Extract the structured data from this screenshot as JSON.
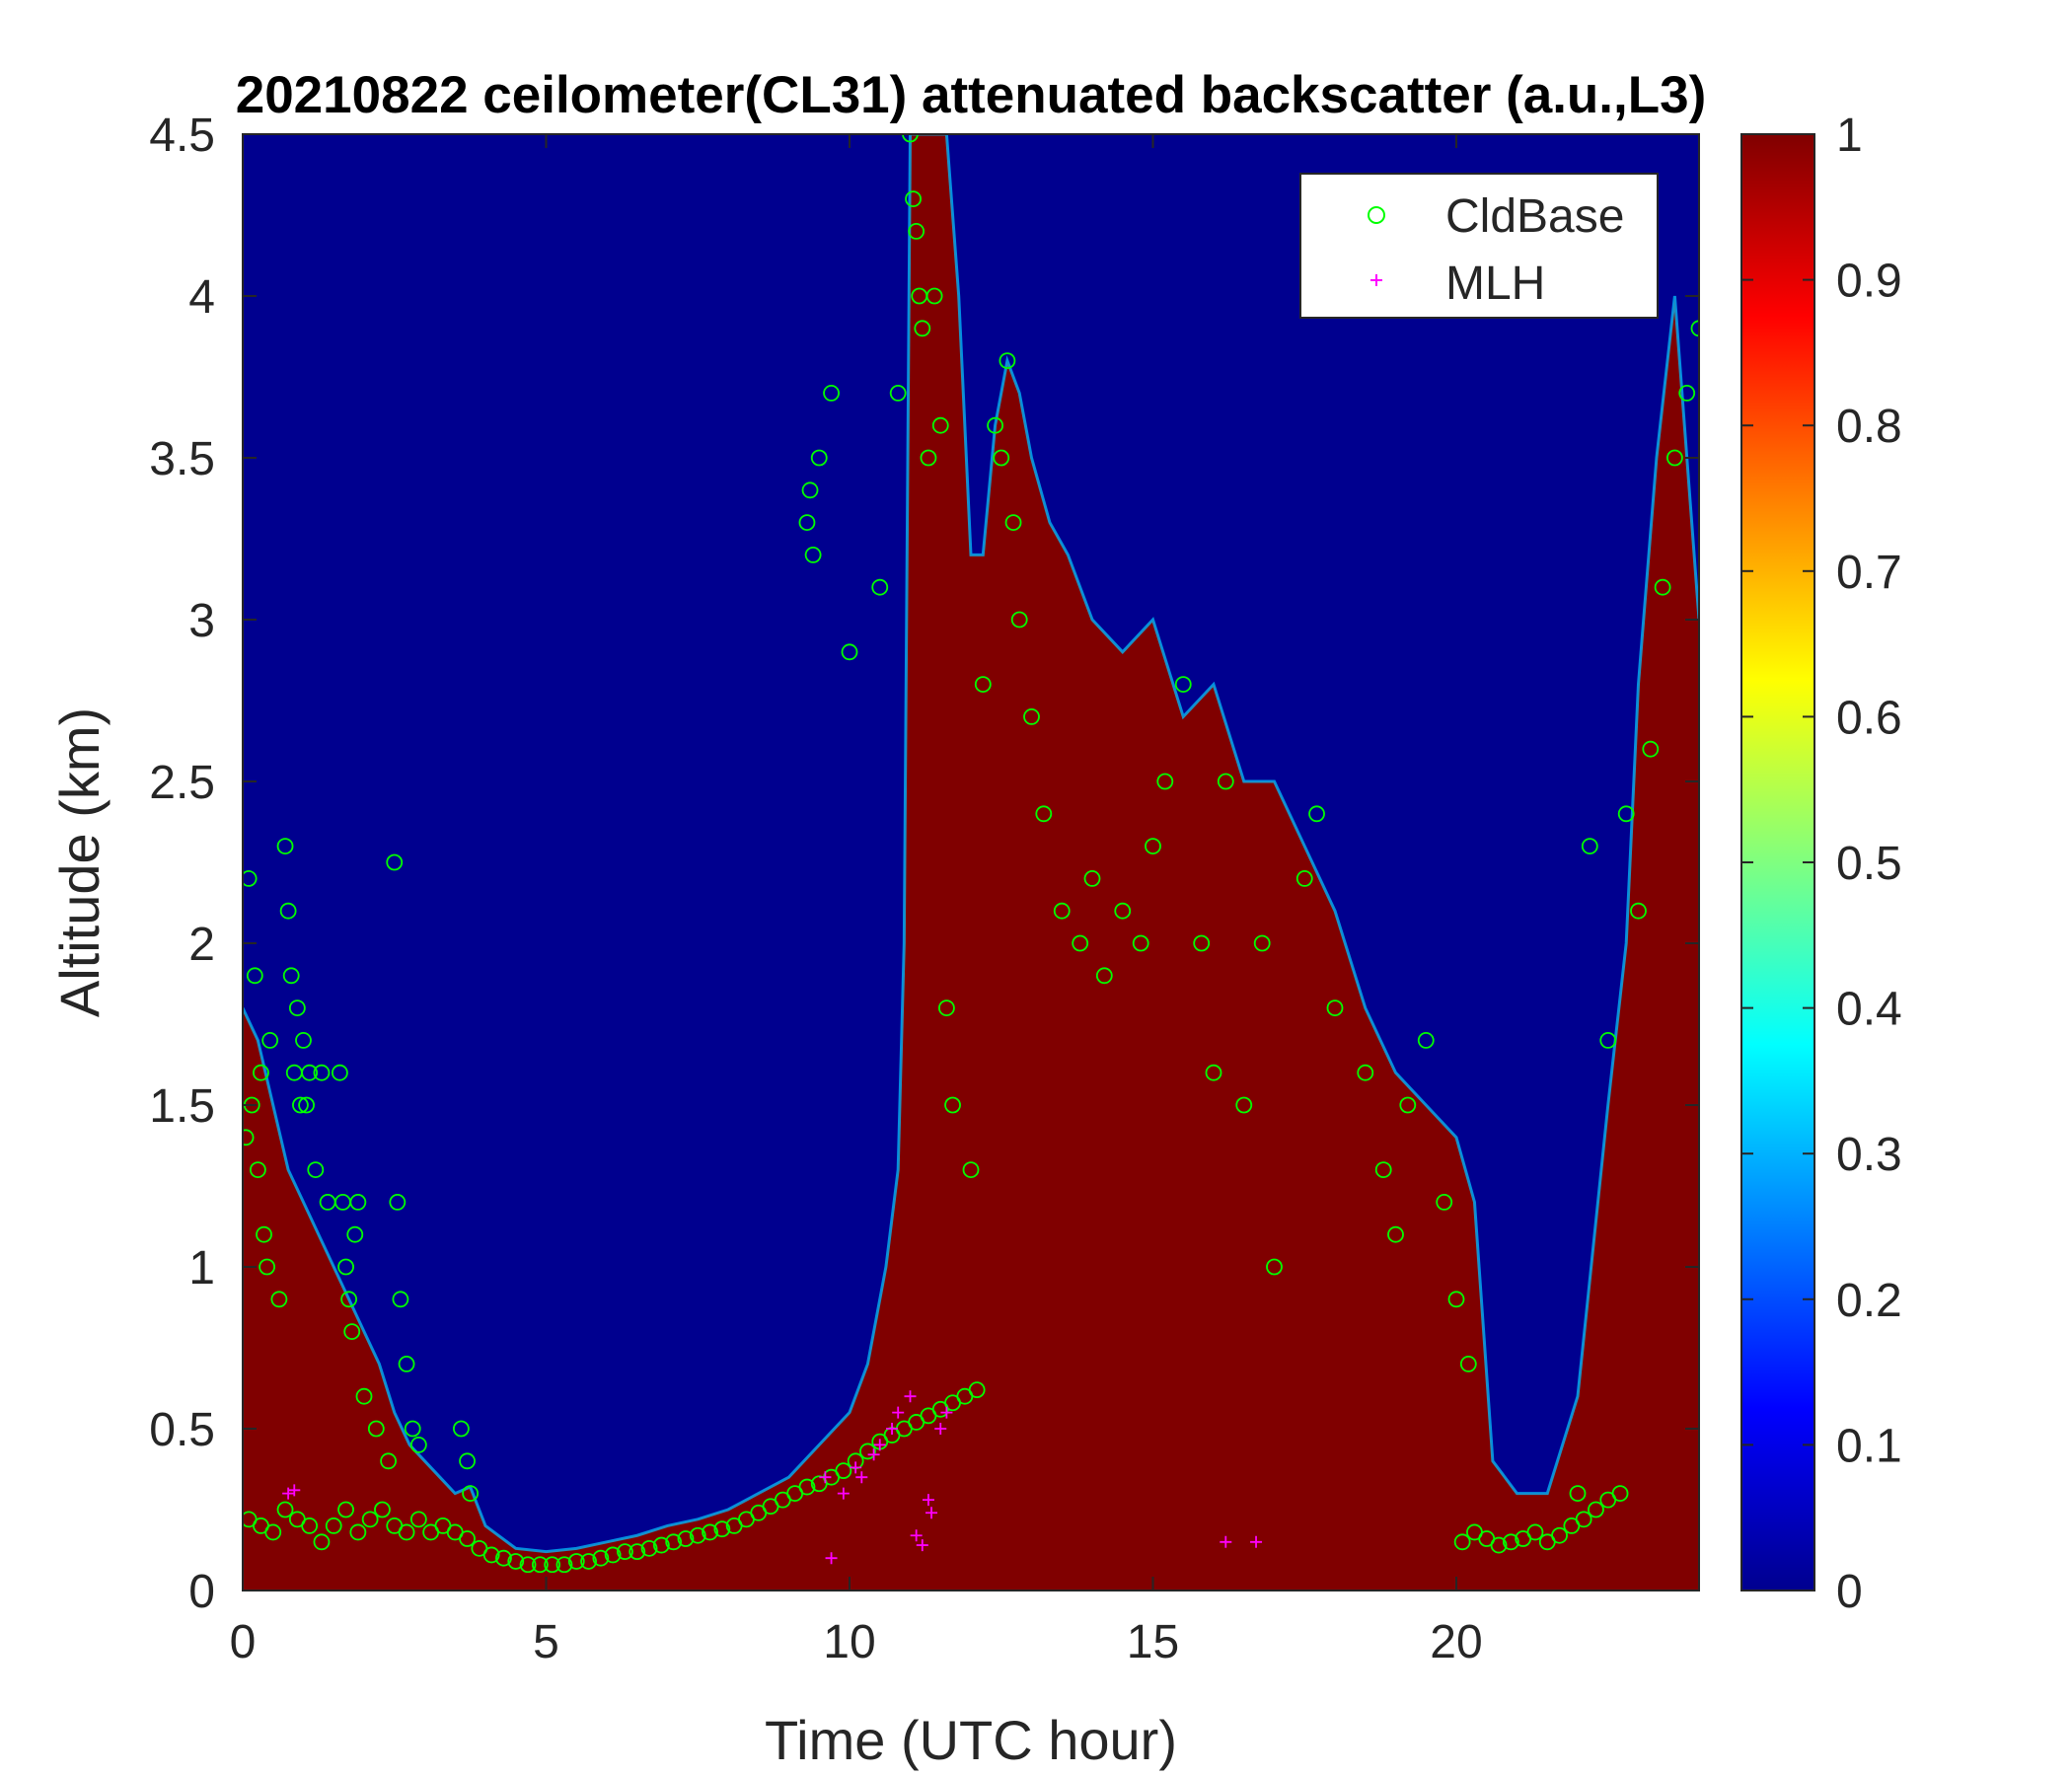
{
  "chart_data": {
    "type": "heatmap",
    "title": "20210822 ceilometer(CL31) attenuated backscatter (a.u.,L3)",
    "xlabel": "Time (UTC hour)",
    "ylabel": "Altitude (km)",
    "xlim": [
      0,
      24
    ],
    "ylim": [
      0,
      4.5
    ],
    "xticks": [
      0,
      5,
      10,
      15,
      20
    ],
    "xtick_labels": [
      "0",
      "5",
      "10",
      "15",
      "20"
    ],
    "yticks": [
      0,
      0.5,
      1,
      1.5,
      2,
      2.5,
      3,
      3.5,
      4,
      4.5
    ],
    "ytick_labels": [
      "0",
      "0.5",
      "1",
      "1.5",
      "2",
      "2.5",
      "3",
      "3.5",
      "4",
      "4.5"
    ],
    "colorbar": {
      "colormap": "jet",
      "clim": [
        0,
        1
      ],
      "ticks": [
        0,
        0.1,
        0.2,
        0.3,
        0.4,
        0.5,
        0.6,
        0.7,
        0.8,
        0.9,
        1
      ],
      "tick_labels": [
        "0",
        "0.1",
        "0.2",
        "0.3",
        "0.4",
        "0.5",
        "0.6",
        "0.7",
        "0.8",
        "0.9",
        "1"
      ]
    },
    "background_value": 0,
    "backscatter_top_km": {
      "x": [
        0,
        0.25,
        0.5,
        0.75,
        1.0,
        1.25,
        1.5,
        1.75,
        2.0,
        2.25,
        2.5,
        2.75,
        3.0,
        3.25,
        3.5,
        3.75,
        4.0,
        4.5,
        5.0,
        5.5,
        6.0,
        6.5,
        7.0,
        7.5,
        8.0,
        8.5,
        9.0,
        9.5,
        10.0,
        10.3,
        10.6,
        10.8,
        10.9,
        11.0,
        11.2,
        11.4,
        11.6,
        11.8,
        12.0,
        12.2,
        12.4,
        12.6,
        12.8,
        13.0,
        13.3,
        13.6,
        14.0,
        14.5,
        15.0,
        15.5,
        16.0,
        16.5,
        17.0,
        17.5,
        18.0,
        18.5,
        19.0,
        19.5,
        20.0,
        20.3,
        20.6,
        21.0,
        21.5,
        22.0,
        22.5,
        22.8,
        23.0,
        23.3,
        23.6,
        24.0
      ],
      "y": [
        1.8,
        1.7,
        1.5,
        1.3,
        1.2,
        1.1,
        1.0,
        0.9,
        0.8,
        0.7,
        0.55,
        0.45,
        0.4,
        0.35,
        0.3,
        0.32,
        0.2,
        0.13,
        0.12,
        0.13,
        0.15,
        0.17,
        0.2,
        0.22,
        0.25,
        0.3,
        0.35,
        0.45,
        0.55,
        0.7,
        1.0,
        1.3,
        2.0,
        4.5,
        4.5,
        4.5,
        4.5,
        4.0,
        3.2,
        3.2,
        3.6,
        3.8,
        3.7,
        3.5,
        3.3,
        3.2,
        3.0,
        2.9,
        3.0,
        2.7,
        2.8,
        2.5,
        2.5,
        2.3,
        2.1,
        1.8,
        1.6,
        1.5,
        1.4,
        1.2,
        0.4,
        0.3,
        0.3,
        0.6,
        1.5,
        2.0,
        2.8,
        3.5,
        4.0,
        3.0
      ]
    },
    "series": [
      {
        "name": "CldBase",
        "marker": "circle",
        "color": "#00ff00",
        "x": [
          0.05,
          0.1,
          0.15,
          0.2,
          0.25,
          0.3,
          0.35,
          0.4,
          0.45,
          0.6,
          0.7,
          0.75,
          0.8,
          0.85,
          0.9,
          0.95,
          1.0,
          1.05,
          1.1,
          1.2,
          1.3,
          1.4,
          1.6,
          1.65,
          1.7,
          1.75,
          1.8,
          1.85,
          1.9,
          2.0,
          2.2,
          2.4,
          2.5,
          2.55,
          2.6,
          2.7,
          2.8,
          2.9,
          3.6,
          3.7,
          3.75,
          9.3,
          9.35,
          9.4,
          9.5,
          9.7,
          10.0,
          10.5,
          10.8,
          11.0,
          11.05,
          11.1,
          11.15,
          11.2,
          11.3,
          11.4,
          11.5,
          11.6,
          11.7,
          12.0,
          12.2,
          12.4,
          12.5,
          12.6,
          12.7,
          12.8,
          13.0,
          13.2,
          13.5,
          13.8,
          14.0,
          14.2,
          14.5,
          14.8,
          15.0,
          15.2,
          15.5,
          15.8,
          16.0,
          16.2,
          16.5,
          16.8,
          17.0,
          17.5,
          17.7,
          18.0,
          18.5,
          18.8,
          19.0,
          19.2,
          19.5,
          19.8,
          20.0,
          20.2,
          22.0,
          22.2,
          22.5,
          22.8,
          23.0,
          23.2,
          23.4,
          23.6,
          23.8,
          24.0
        ],
        "y": [
          1.4,
          2.2,
          1.5,
          1.9,
          1.3,
          1.6,
          1.1,
          1.0,
          1.7,
          0.9,
          2.3,
          2.1,
          1.9,
          1.6,
          1.8,
          1.5,
          1.7,
          1.5,
          1.6,
          1.3,
          1.6,
          1.2,
          1.6,
          1.2,
          1.0,
          0.9,
          0.8,
          1.1,
          1.2,
          0.6,
          0.5,
          0.4,
          2.25,
          1.2,
          0.9,
          0.7,
          0.5,
          0.45,
          0.5,
          0.4,
          0.3,
          3.3,
          3.4,
          3.2,
          3.5,
          3.7,
          2.9,
          3.1,
          3.7,
          4.5,
          4.3,
          4.2,
          4.0,
          3.9,
          3.5,
          4.0,
          3.6,
          1.8,
          1.5,
          1.3,
          2.8,
          3.6,
          3.5,
          3.8,
          3.3,
          3.0,
          2.7,
          2.4,
          2.1,
          2.0,
          2.2,
          1.9,
          2.1,
          2.0,
          2.3,
          2.5,
          2.8,
          2.0,
          1.6,
          2.5,
          1.5,
          2.0,
          1.0,
          2.2,
          2.4,
          1.8,
          1.6,
          1.3,
          1.1,
          1.5,
          1.7,
          1.2,
          0.9,
          0.7,
          0.3,
          2.3,
          1.7,
          2.4,
          2.1,
          2.6,
          3.1,
          3.5,
          3.7,
          3.9
        ]
      },
      {
        "name": "CldBase",
        "marker": "circle",
        "color": "#00ff00",
        "x": [
          0.1,
          0.3,
          0.5,
          0.7,
          0.9,
          1.1,
          1.3,
          1.5,
          1.7,
          1.9,
          2.1,
          2.3,
          2.5,
          2.7,
          2.9,
          3.1,
          3.3,
          3.5,
          3.7,
          3.9,
          4.1,
          4.3,
          4.5,
          4.7,
          4.9,
          5.1,
          5.3,
          5.5,
          5.7,
          5.9,
          6.1,
          6.3,
          6.5,
          6.7,
          6.9,
          7.1,
          7.3,
          7.5,
          7.7,
          7.9,
          8.1,
          8.3,
          8.5,
          8.7,
          8.9,
          9.1,
          9.3,
          9.5,
          9.7,
          9.9,
          10.1,
          10.3,
          10.5,
          10.7,
          10.9,
          11.1,
          11.3,
          11.5,
          11.7,
          11.9,
          12.1,
          20.1,
          20.3,
          20.5,
          20.7,
          20.9,
          21.1,
          21.3,
          21.5,
          21.7,
          21.9,
          22.1,
          22.3,
          22.5,
          22.7
        ],
        "y": [
          0.22,
          0.2,
          0.18,
          0.25,
          0.22,
          0.2,
          0.15,
          0.2,
          0.25,
          0.18,
          0.22,
          0.25,
          0.2,
          0.18,
          0.22,
          0.18,
          0.2,
          0.18,
          0.16,
          0.13,
          0.11,
          0.1,
          0.09,
          0.08,
          0.08,
          0.08,
          0.08,
          0.09,
          0.09,
          0.1,
          0.11,
          0.12,
          0.12,
          0.13,
          0.14,
          0.15,
          0.16,
          0.17,
          0.18,
          0.19,
          0.2,
          0.22,
          0.24,
          0.26,
          0.28,
          0.3,
          0.32,
          0.33,
          0.35,
          0.37,
          0.4,
          0.43,
          0.46,
          0.48,
          0.5,
          0.52,
          0.54,
          0.56,
          0.58,
          0.6,
          0.62,
          0.15,
          0.18,
          0.16,
          0.14,
          0.15,
          0.16,
          0.18,
          0.15,
          0.17,
          0.2,
          0.22,
          0.25,
          0.28,
          0.3
        ]
      },
      {
        "name": "MLH",
        "marker": "plus",
        "color": "#ff00ff",
        "x": [
          0.75,
          0.85,
          9.6,
          9.7,
          9.9,
          10.1,
          10.2,
          10.4,
          10.5,
          10.7,
          10.8,
          11.0,
          11.1,
          11.2,
          11.3,
          11.35,
          11.5,
          11.6,
          16.2,
          16.7
        ],
        "y": [
          0.3,
          0.31,
          0.35,
          0.1,
          0.3,
          0.38,
          0.35,
          0.42,
          0.45,
          0.5,
          0.55,
          0.6,
          0.17,
          0.14,
          0.28,
          0.24,
          0.5,
          0.55,
          0.15,
          0.15
        ]
      }
    ],
    "legend": {
      "location": "top-right",
      "entries": [
        "CldBase",
        "MLH"
      ]
    }
  }
}
